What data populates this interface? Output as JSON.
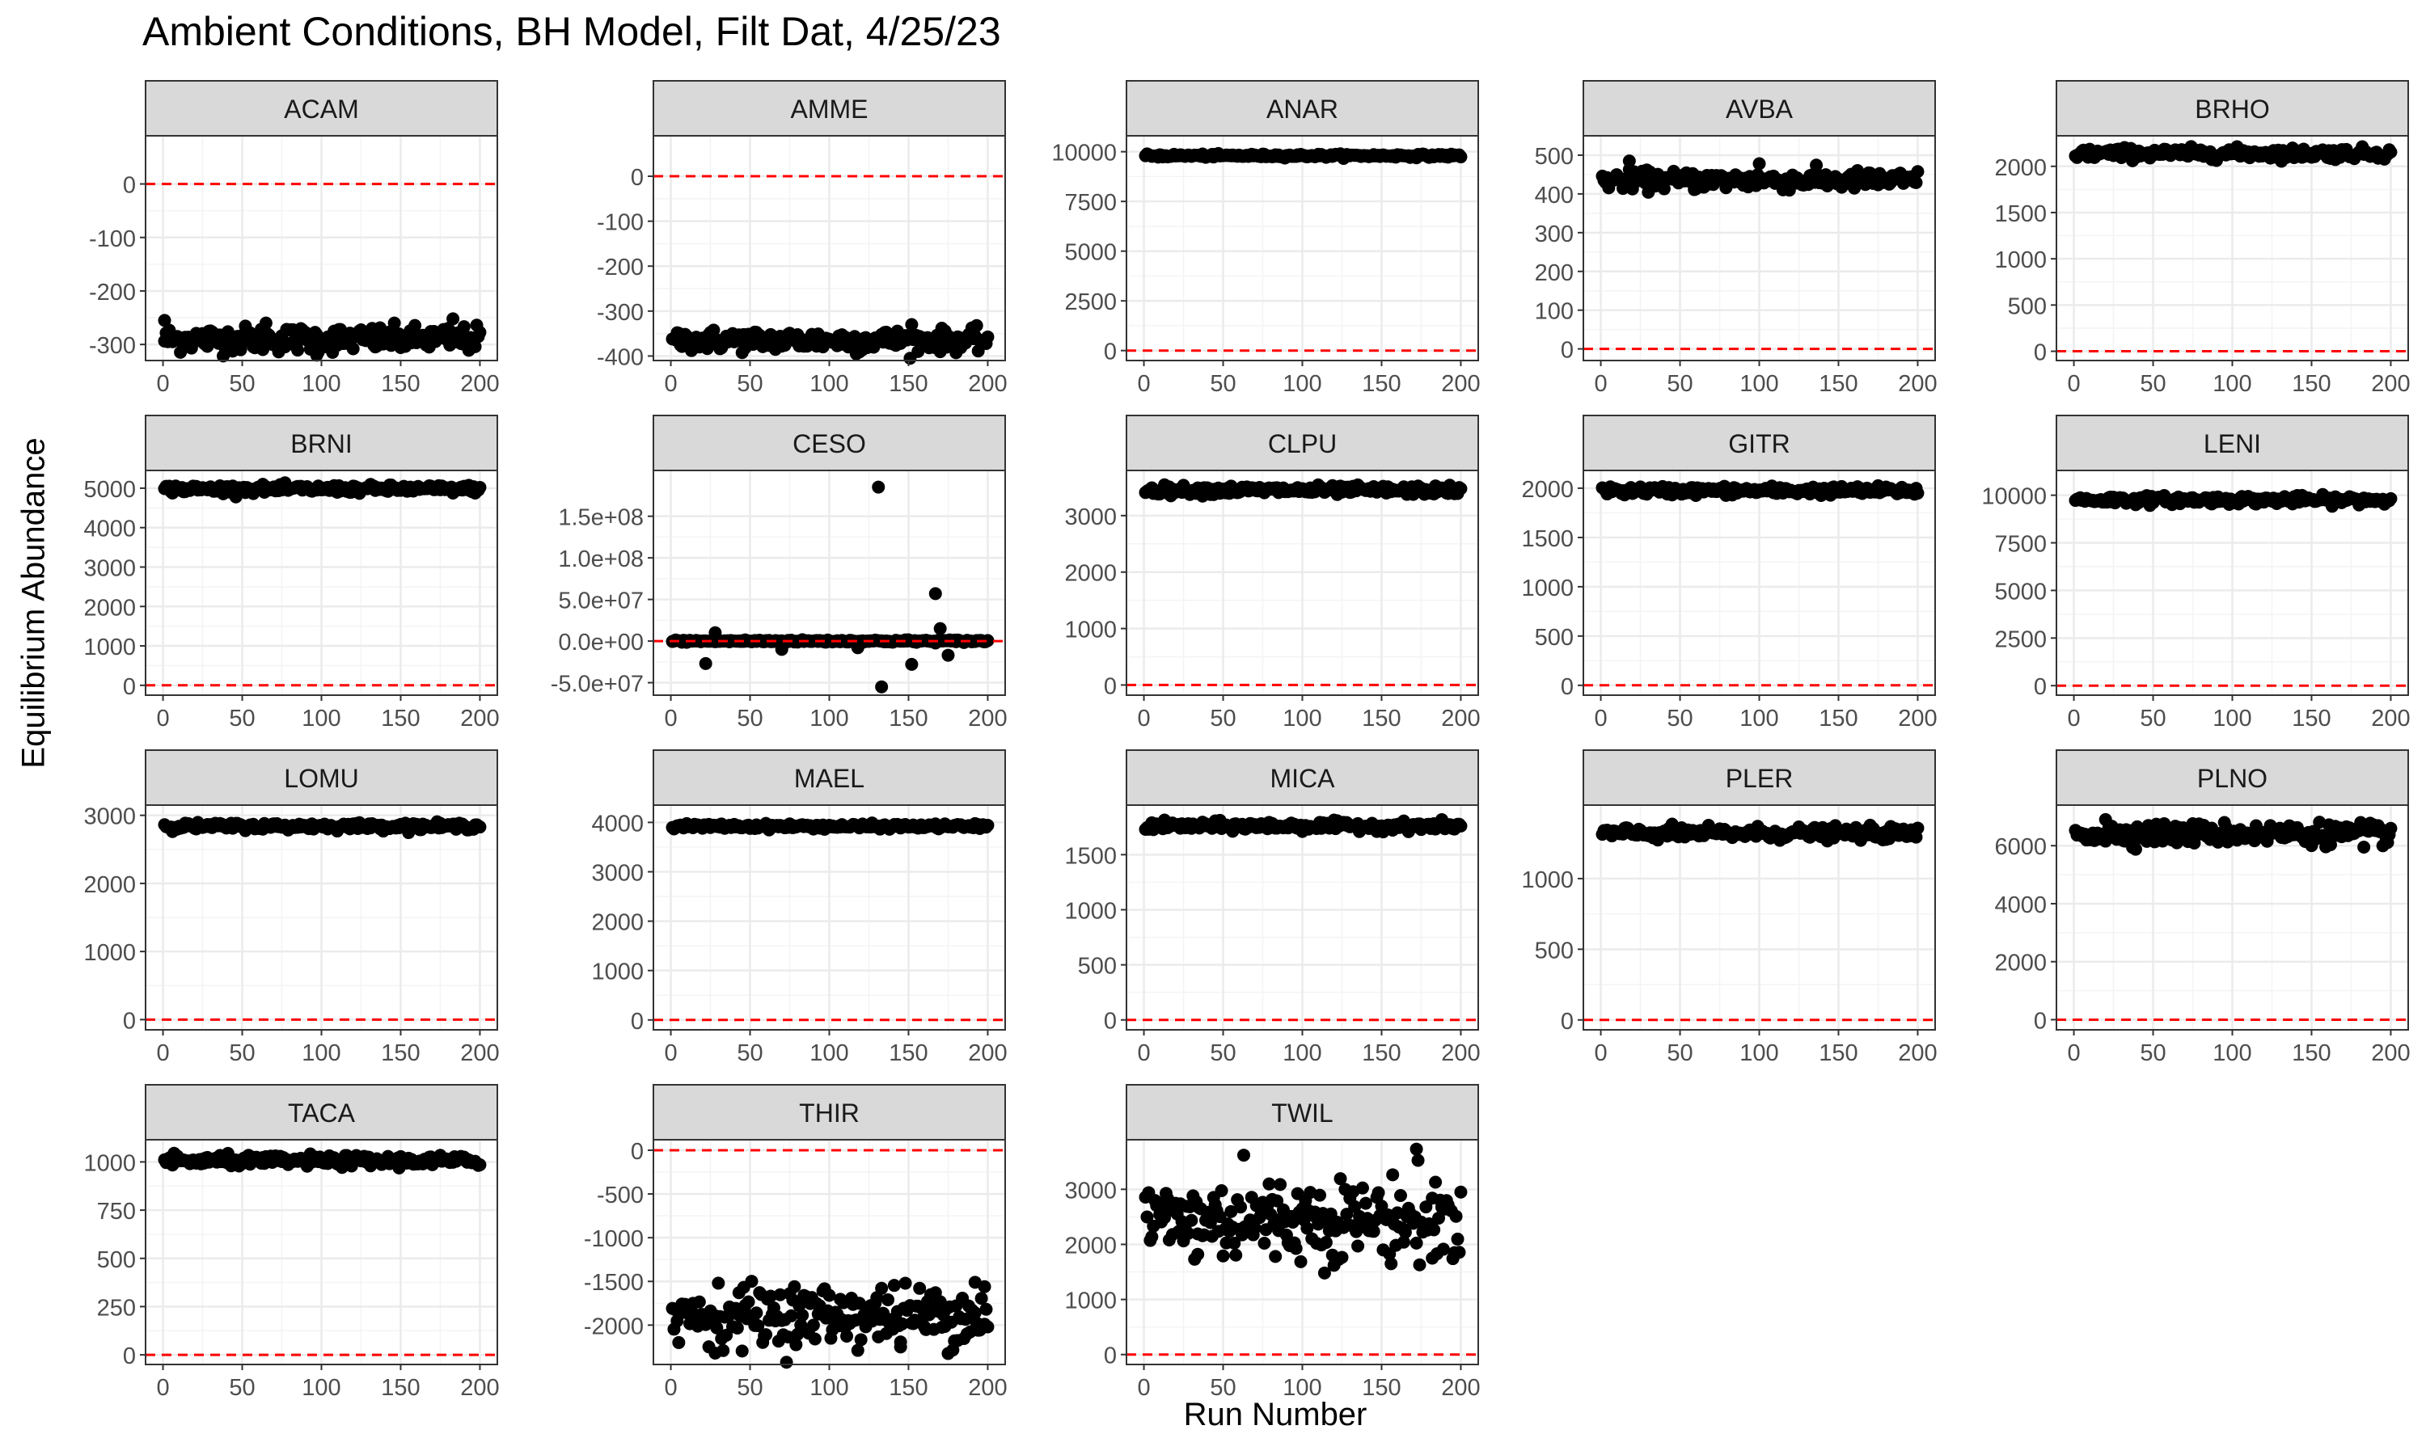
{
  "title": "Ambient Conditions, BH Model, Filt Dat, 4/25/23",
  "xlabel": "Run Number",
  "ylabel": "Equilibrium Abundance",
  "colors": {
    "point": "#000000",
    "reference_line": "#ff0000",
    "strip_fill": "#d9d9d9",
    "panel_border": "#333333",
    "grid": "#ebebeb"
  },
  "chart_data": {
    "type": "scatter",
    "facet_by": "species",
    "x_ticks": [
      0,
      50,
      100,
      150,
      200
    ],
    "xlim": [
      0,
      200
    ],
    "reference_line": {
      "y": 0,
      "style": "dashed",
      "color": "#ff0000"
    },
    "grid": true,
    "panels": [
      {
        "name": "ACAM",
        "y_ticks": [
          "0",
          "-100",
          "-200",
          "-300"
        ],
        "y_tick_values": [
          0,
          -100,
          -200,
          -300
        ],
        "ylim": [
          -330,
          90
        ],
        "series": {
          "mean": -290,
          "spread": 12,
          "outliers": [
            [
              97,
              -320
            ],
            [
              183,
              -252
            ],
            [
              1,
              -255
            ],
            [
              65,
              -260
            ]
          ]
        }
      },
      {
        "name": "AMME",
        "y_ticks": [
          "0",
          "-100",
          "-200",
          "-300",
          "-400"
        ],
        "y_tick_values": [
          0,
          -100,
          -200,
          -300,
          -400
        ],
        "ylim": [
          -410,
          90
        ],
        "series": {
          "mean": -365,
          "spread": 12,
          "outliers": [
            [
              152,
              -330
            ],
            [
              117,
              -395
            ]
          ]
        }
      },
      {
        "name": "ANAR",
        "y_ticks": [
          "0",
          "2500",
          "5000",
          "7500",
          "10000"
        ],
        "y_tick_values": [
          0,
          2500,
          5000,
          7500,
          10000
        ],
        "ylim": [
          -500,
          10800
        ],
        "series": {
          "mean": 9800,
          "spread": 40,
          "outliers": []
        }
      },
      {
        "name": "AVBA",
        "y_ticks": [
          "0",
          "100",
          "200",
          "300",
          "400",
          "500"
        ],
        "y_tick_values": [
          0,
          100,
          200,
          300,
          400,
          500
        ],
        "ylim": [
          -30,
          550
        ],
        "series": {
          "mean": 435,
          "spread": 12,
          "outliers": [
            [
              18,
              485
            ],
            [
              100,
              478
            ]
          ]
        }
      },
      {
        "name": "BRHO",
        "y_ticks": [
          "0",
          "500",
          "1000",
          "1500",
          "2000"
        ],
        "y_tick_values": [
          0,
          500,
          1000,
          1500,
          2000
        ],
        "ylim": [
          -100,
          2330
        ],
        "series": {
          "mean": 2140,
          "spread": 30,
          "outliers": []
        }
      },
      {
        "name": "BRNI",
        "y_ticks": [
          "0",
          "1000",
          "2000",
          "3000",
          "4000",
          "5000"
        ],
        "y_tick_values": [
          0,
          1000,
          2000,
          3000,
          4000,
          5000
        ],
        "ylim": [
          -250,
          5450
        ],
        "series": {
          "mean": 4980,
          "spread": 50,
          "outliers": []
        }
      },
      {
        "name": "CESO",
        "y_ticks": [
          "-5.0e+07",
          "0.0e+00",
          "5.0e+07",
          "1.0e+08",
          "1.5e+08"
        ],
        "y_tick_values": [
          -50000000,
          0,
          50000000,
          100000000,
          150000000
        ],
        "ylim": [
          -65000000,
          205000000
        ],
        "series": {
          "mean": 0,
          "spread": 800000,
          "outliers": [
            [
              131,
              185000000
            ],
            [
              133,
              -55000000
            ],
            [
              167,
              57000000
            ],
            [
              170,
              15000000
            ],
            [
              22,
              -27000000
            ],
            [
              152,
              -28000000
            ],
            [
              175,
              -17000000
            ],
            [
              28,
              10000000
            ],
            [
              70,
              -10000000
            ],
            [
              118,
              -8000000
            ]
          ]
        }
      },
      {
        "name": "CLPU",
        "y_ticks": [
          "0",
          "1000",
          "2000",
          "3000"
        ],
        "y_tick_values": [
          0,
          1000,
          2000,
          3000
        ],
        "ylim": [
          -180,
          3800
        ],
        "series": {
          "mean": 3450,
          "spread": 40,
          "outliers": []
        }
      },
      {
        "name": "GITR",
        "y_ticks": [
          "0",
          "500",
          "1000",
          "1500",
          "2000"
        ],
        "y_tick_values": [
          0,
          500,
          1000,
          1500,
          2000
        ],
        "ylim": [
          -100,
          2180
        ],
        "series": {
          "mean": 1975,
          "spread": 22,
          "outliers": []
        }
      },
      {
        "name": "LENI",
        "y_ticks": [
          "0",
          "2500",
          "5000",
          "7500",
          "10000"
        ],
        "y_tick_values": [
          0,
          2500,
          5000,
          7500,
          10000
        ],
        "ylim": [
          -500,
          11300
        ],
        "series": {
          "mean": 9750,
          "spread": 110,
          "outliers": []
        }
      },
      {
        "name": "LOMU",
        "y_ticks": [
          "0",
          "1000",
          "2000",
          "3000"
        ],
        "y_tick_values": [
          0,
          1000,
          2000,
          3000
        ],
        "ylim": [
          -150,
          3150
        ],
        "series": {
          "mean": 2840,
          "spread": 25,
          "outliers": []
        }
      },
      {
        "name": "MAEL",
        "y_ticks": [
          "0",
          "1000",
          "2000",
          "3000",
          "4000"
        ],
        "y_tick_values": [
          0,
          1000,
          2000,
          3000,
          4000
        ],
        "ylim": [
          -200,
          4350
        ],
        "series": {
          "mean": 3920,
          "spread": 25,
          "outliers": []
        }
      },
      {
        "name": "MICA",
        "y_ticks": [
          "0",
          "500",
          "1000",
          "1500"
        ],
        "y_tick_values": [
          0,
          500,
          1000,
          1500
        ],
        "ylim": [
          -90,
          1950
        ],
        "series": {
          "mean": 1760,
          "spread": 20,
          "outliers": []
        }
      },
      {
        "name": "PLER",
        "y_ticks": [
          "0",
          "500",
          "1000"
        ],
        "y_tick_values": [
          0,
          500,
          1000
        ],
        "ylim": [
          -70,
          1520
        ],
        "series": {
          "mean": 1320,
          "spread": 22,
          "outliers": []
        }
      },
      {
        "name": "PLNO",
        "y_ticks": [
          "0",
          "2000",
          "4000",
          "6000"
        ],
        "y_tick_values": [
          0,
          2000,
          4000,
          6000
        ],
        "ylim": [
          -350,
          7400
        ],
        "series": {
          "mean": 6420,
          "spread": 180,
          "outliers": [
            [
              183,
              5950
            ],
            [
              20,
              6900
            ]
          ]
        }
      },
      {
        "name": "TACA",
        "y_ticks": [
          "0",
          "250",
          "500",
          "750",
          "1000"
        ],
        "y_tick_values": [
          0,
          250,
          500,
          750,
          1000
        ],
        "ylim": [
          -50,
          1115
        ],
        "series": {
          "mean": 1005,
          "spread": 14,
          "outliers": []
        }
      },
      {
        "name": "THIR",
        "y_ticks": [
          "0",
          "-500",
          "-1000",
          "-1500",
          "-2000"
        ],
        "y_tick_values": [
          0,
          -500,
          -1000,
          -1500,
          -2000
        ],
        "ylim": [
          -2450,
          120
        ],
        "series": {
          "mean": -1880,
          "spread": 170,
          "outliers": [
            [
              28,
              -2320
            ],
            [
              145,
              -2250
            ],
            [
              192,
              -1510
            ],
            [
              198,
              -1560
            ]
          ]
        }
      },
      {
        "name": "TWIL",
        "y_ticks": [
          "0",
          "1000",
          "2000",
          "3000"
        ],
        "y_tick_values": [
          0,
          1000,
          2000,
          3000
        ],
        "ylim": [
          -180,
          3900
        ],
        "series": {
          "mean": 2450,
          "spread": 380,
          "outliers": [
            [
              172,
              3730
            ],
            [
              63,
              3620
            ],
            [
              182,
              1750
            ],
            [
              34,
              1820
            ]
          ]
        }
      }
    ]
  }
}
